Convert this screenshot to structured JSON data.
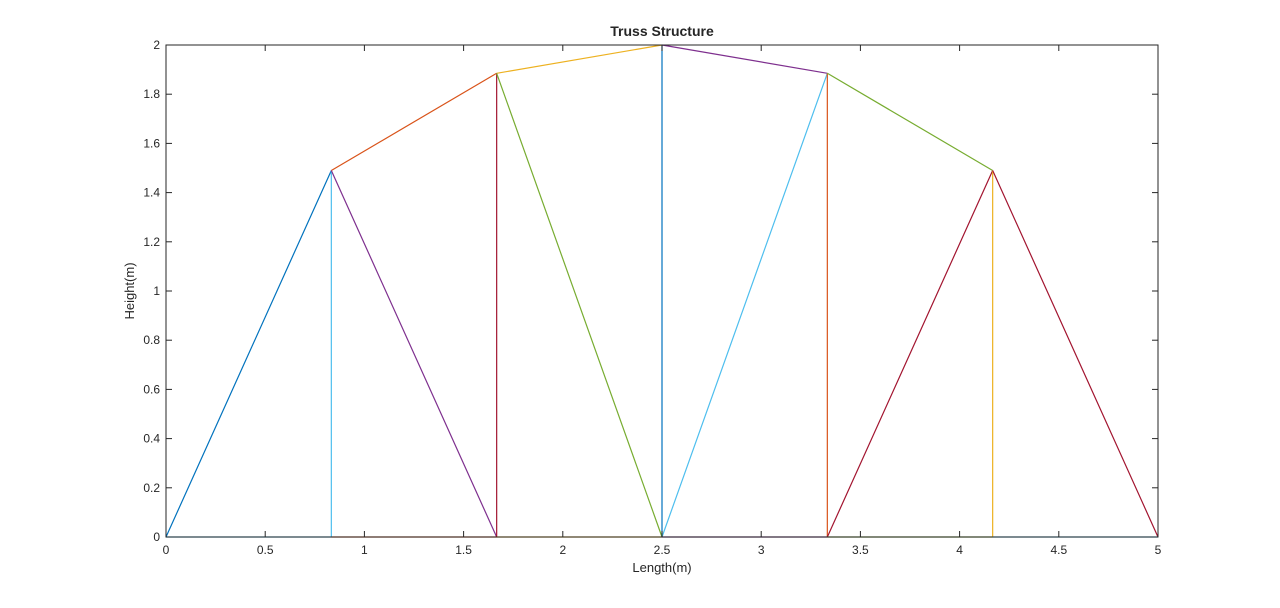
{
  "chart_data": {
    "type": "line",
    "title": "Truss Structure",
    "xlabel": "Length(m)",
    "ylabel": "Height(m)",
    "xlim": [
      0,
      5
    ],
    "ylim": [
      0,
      2
    ],
    "xticks": [
      "0",
      "0.5",
      "1",
      "1.5",
      "2",
      "2.5",
      "3",
      "3.5",
      "4",
      "4.5",
      "5"
    ],
    "yticks": [
      "0",
      "0.2",
      "0.4",
      "0.6",
      "0.8",
      "1",
      "1.2",
      "1.4",
      "1.6",
      "1.8",
      "2"
    ],
    "grid": false,
    "box": true,
    "series": [
      {
        "color": "#0072BD",
        "x": [
          0,
          0.8333
        ],
        "y": [
          0,
          1.49
        ]
      },
      {
        "color": "#4DBEEE",
        "x": [
          0,
          0.8333
        ],
        "y": [
          0,
          0
        ]
      },
      {
        "color": "#4DBEEE",
        "x": [
          0.8333,
          0.8333
        ],
        "y": [
          0,
          1.49
        ]
      },
      {
        "color": "#D95319",
        "x": [
          0.8333,
          1.6667
        ],
        "y": [
          1.49,
          1.885
        ]
      },
      {
        "color": "#7E2F8E",
        "x": [
          0.8333,
          1.6667
        ],
        "y": [
          1.49,
          0
        ]
      },
      {
        "color": "#D95319",
        "x": [
          0.8333,
          1.6667
        ],
        "y": [
          0,
          0
        ]
      },
      {
        "color": "#A2142F",
        "x": [
          1.6667,
          1.6667
        ],
        "y": [
          0,
          1.885
        ]
      },
      {
        "color": "#EDB120",
        "x": [
          1.6667,
          2.5
        ],
        "y": [
          1.885,
          2.0
        ]
      },
      {
        "color": "#77AC30",
        "x": [
          1.6667,
          2.5
        ],
        "y": [
          1.885,
          0
        ]
      },
      {
        "color": "#EDB120",
        "x": [
          1.6667,
          2.5
        ],
        "y": [
          0,
          0
        ]
      },
      {
        "color": "#0072BD",
        "x": [
          2.5,
          2.5
        ],
        "y": [
          0,
          2.0
        ]
      },
      {
        "color": "#7E2F8E",
        "x": [
          2.5,
          3.3333
        ],
        "y": [
          2.0,
          1.885
        ]
      },
      {
        "color": "#4DBEEE",
        "x": [
          2.5,
          3.3333
        ],
        "y": [
          0,
          1.885
        ]
      },
      {
        "color": "#7E2F8E",
        "x": [
          2.5,
          3.3333
        ],
        "y": [
          0,
          0
        ]
      },
      {
        "color": "#D95319",
        "x": [
          3.3333,
          3.3333
        ],
        "y": [
          0,
          1.885
        ]
      },
      {
        "color": "#77AC30",
        "x": [
          3.3333,
          4.1667
        ],
        "y": [
          1.885,
          1.49
        ]
      },
      {
        "color": "#A2142F",
        "x": [
          3.3333,
          4.1667
        ],
        "y": [
          0,
          1.49
        ]
      },
      {
        "color": "#77AC30",
        "x": [
          3.3333,
          4.1667
        ],
        "y": [
          0,
          0
        ]
      },
      {
        "color": "#EDB120",
        "x": [
          4.1667,
          4.1667
        ],
        "y": [
          0,
          1.49
        ]
      },
      {
        "color": "#A2142F",
        "x": [
          4.1667,
          5
        ],
        "y": [
          1.49,
          0
        ]
      },
      {
        "color": "#4DBEEE",
        "x": [
          4.1667,
          5
        ],
        "y": [
          0,
          0
        ]
      }
    ]
  }
}
